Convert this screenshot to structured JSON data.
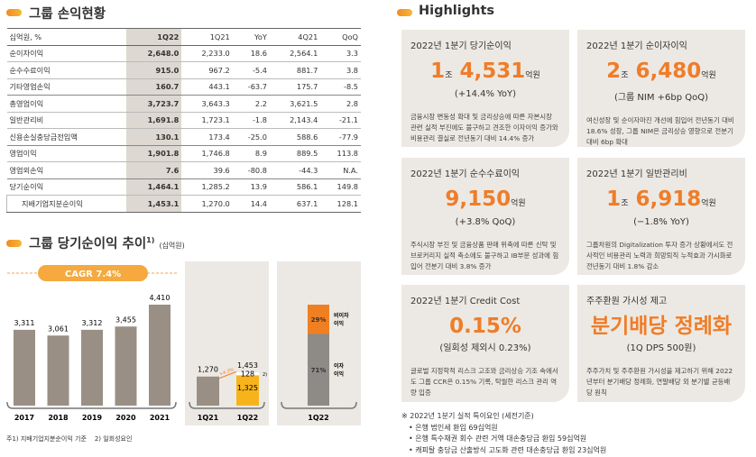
{
  "left": {
    "title": "그룹 손익현황",
    "table": {
      "headers": [
        "십억원, %",
        "1Q22",
        "1Q21",
        "YoY",
        "4Q21",
        "QoQ"
      ],
      "rows": [
        [
          "순이자이익",
          "2,648.0",
          "2,233.0",
          "18.6",
          "2,564.1",
          "3.3"
        ],
        [
          "순수수료이익",
          "915.0",
          "967.2",
          "-5.4",
          "881.7",
          "3.8"
        ],
        [
          "기타영업손익",
          "160.7",
          "443.1",
          "-63.7",
          "175.7",
          "-8.5"
        ],
        [
          "총영업이익",
          "3,723.7",
          "3,643.3",
          "2.2",
          "3,621.5",
          "2.8"
        ],
        [
          "일반관리비",
          "1,691.8",
          "1,723.1",
          "-1.8",
          "2,143.4",
          "-21.1"
        ],
        [
          "신용손실충당금전입액",
          "130.1",
          "173.4",
          "-25.0",
          "588.6",
          "-77.9"
        ],
        [
          "영업이익",
          "1,901.8",
          "1,746.8",
          "8.9",
          "889.5",
          "113.8"
        ],
        [
          "영업외손익",
          "7.6",
          "39.6",
          "-80.8",
          "-44.3",
          "N.A."
        ],
        [
          "당기순이익",
          "1,464.1",
          "1,285.2",
          "13.9",
          "586.1",
          "149.8"
        ],
        [
          "지배기업지분순이익",
          "1,453.1",
          "1,270.0",
          "14.4",
          "637.1",
          "128.1"
        ]
      ]
    },
    "chart_title": "그룹 당기순이익 추이",
    "chart_title_sup": "1)",
    "chart_unit": "(십억원)",
    "footnote": "주1) 지배기업지분순이익 기준    2) 일회성요인"
  },
  "chart_data": [
    {
      "type": "bar",
      "categories": [
        "2017",
        "2018",
        "2019",
        "2020",
        "2021"
      ],
      "values": [
        3311,
        3061,
        3312,
        3455,
        4410
      ],
      "labels": [
        "3,311",
        "3,061",
        "3,312",
        "3,455",
        "4,410"
      ],
      "annotation": "CAGR 7.4%"
    },
    {
      "type": "bar",
      "stacked": true,
      "categories": [
        "1Q21",
        "1Q22"
      ],
      "series": [
        {
          "values": [
            1270,
            1325
          ],
          "labels": [
            "1,270",
            "1,325"
          ]
        },
        {
          "values": [
            0,
            128
          ],
          "labels": [
            "",
            "128"
          ],
          "marker": "2)"
        }
      ],
      "totals": [
        "",
        "1,453"
      ],
      "annotation": "+4.3%"
    },
    {
      "type": "bar",
      "stacked": true,
      "categories": [
        "1Q22"
      ],
      "series": [
        {
          "name": "이자 이익",
          "values": [
            71
          ],
          "label": "71%"
        },
        {
          "name": "비이자 이익",
          "values": [
            29
          ],
          "label": "29%"
        }
      ]
    }
  ],
  "colors": {
    "accent": "#ef7d29",
    "gray_bar": "#9a8f84",
    "yellow": "#f7b31c",
    "panel": "#ece9e4"
  },
  "highlights": {
    "title": "Highlights",
    "cards": [
      {
        "title": "2022년 1분기 당기순이익",
        "v1": "1",
        "u1": "조",
        "v2": "4,531",
        "u2": "억원",
        "sub": "(+14.4% YoY)",
        "desc": "금융시장 변동성 확대 및 금리상승에 따른 자본시장 관련 실적 부진에도 불구하고 견조한 이자이익 증가와 비용관리 결실로 전년동기 대비 14.4% 증가"
      },
      {
        "title": "2022년 1분기 순이자이익",
        "v1": "2",
        "u1": "조",
        "v2": "6,480",
        "u2": "억원",
        "sub": "(그룹 NIM +6bp QoQ)",
        "desc": "여신성장 및 순이자마진 개선에 힘입어 전년동기 대비 18.6% 성장, 그룹 NIM은 금리상승 영향으로 전분기 대비 6bp 확대"
      },
      {
        "title": "2022년 1분기 순수수료이익",
        "v1": "",
        "u1": "",
        "v2": "9,150",
        "u2": "억원",
        "sub": "(+3.8% QoQ)",
        "desc": "주식시장 부진 및 금융상품 판매 위축에 따른 신탁 및 브로커리지 실적 축소에도 불구하고 IB부문 성과에 힘입어 전분기 대비 3.8% 증가"
      },
      {
        "title": "2022년 1분기 일반관리비",
        "v1": "1",
        "u1": "조",
        "v2": "6,918",
        "u2": "억원",
        "sub": "(−1.8% YoY)",
        "desc": "그룹차원의 Digitalization 투자 증가 상황에서도 전사적인 비용관리 노력과 희망퇴직 누적효과 가시화로 전년동기 대비 1.8% 감소"
      },
      {
        "title": "2022년 1분기 Credit Cost",
        "v1": "",
        "u1": "",
        "v2": "0.15%",
        "u2": "",
        "sub": "(일회성 제외시 0.23%)",
        "desc": "글로벌 지정학적 리스크 고조와 금리상승 기조 속에서도 그룹 CCR은 0.15% 기록, 탁월한 리스크 관리 역량 입증"
      },
      {
        "title": "주주환원 가시성 제고",
        "v1": "",
        "u1": "",
        "v2": "분기배당 정례화",
        "u2": "",
        "sub": "(1Q DPS 500원)",
        "desc": "주주가치 및 주주환원 가시성을 제고하기 위해 2022년부터 분기배당 정례화, 연말배당 외 분기별 균등배당 원칙"
      }
    ],
    "note": {
      "title": "※ 2022년 1분기 실적 특이요인 (세전기준)",
      "items": [
        "• 은행 법인세 환입 69십억원",
        "• 은행 특수채권 회수 관련 거액 대손충당금 환입 59십억원",
        "• 캐피탈 충당금 산출방식 고도화 관련 대손충당금 환입 23십억원"
      ]
    }
  }
}
